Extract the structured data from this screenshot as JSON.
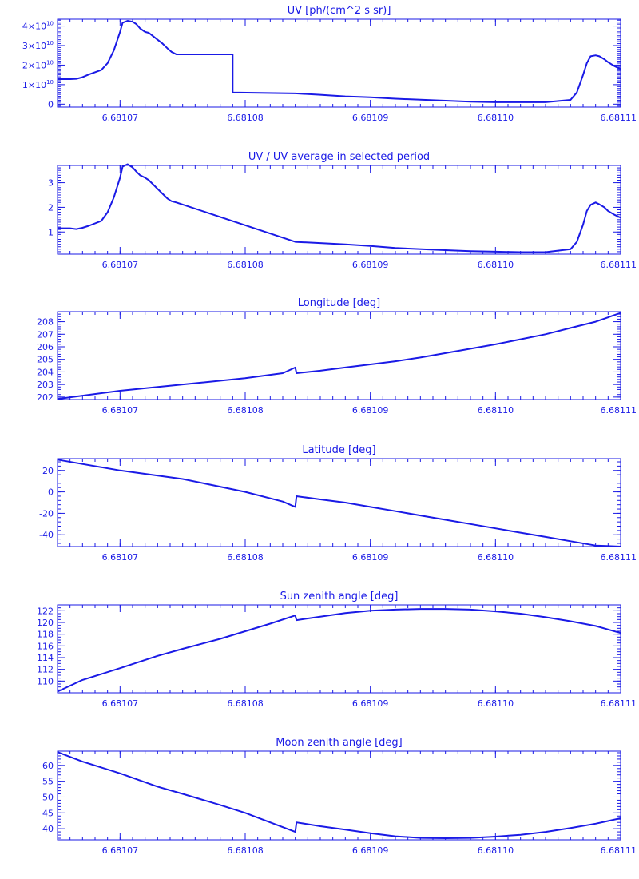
{
  "colors": {
    "line": "#1a1ae6",
    "background": "#ffffff"
  },
  "chart_data": [
    {
      "type": "line",
      "title": "UV [ph/(cm^2 s sr)]",
      "xlim": [
        6.681065,
        6.68111
      ],
      "ylim": [
        -0.15,
        4.35
      ],
      "y_scale_exponent": 10,
      "y_ticks": [
        0,
        1,
        2,
        3,
        4
      ],
      "y_tick_labels": [
        "0",
        "1×10",
        "2×10",
        "3×10",
        "4×10"
      ],
      "y_minor_per_major": 10,
      "x_ticks": [
        6.68107,
        6.68108,
        6.68109,
        6.6811,
        6.68111
      ],
      "x_tick_labels": [
        "6.68107",
        "6.68108",
        "6.68109",
        "6.68110",
        "6.68111"
      ],
      "x": [
        6.681065,
        6.681066,
        6.6810665,
        6.681067,
        6.6810675,
        6.6810685,
        6.681069,
        6.6810695,
        6.68107,
        6.6810702,
        6.6810706,
        6.681071,
        6.6810713,
        6.6810716,
        6.681072,
        6.6810723,
        6.6810726,
        6.681073,
        6.6810734,
        6.6810738,
        6.6810741,
        6.6810745,
        6.681079,
        6.681079,
        6.681084,
        6.681086,
        6.681088,
        6.68109,
        6.681092,
        6.681095,
        6.681098,
        6.6811,
        6.681102,
        6.681104,
        6.681106,
        6.6811065,
        6.681107,
        6.6811073,
        6.6811076,
        6.681108,
        6.6811083,
        6.6811087,
        6.681109,
        6.6811095,
        6.68111
      ],
      "series": [
        {
          "values": [
            1.28,
            1.28,
            1.3,
            1.38,
            1.52,
            1.75,
            2.1,
            2.75,
            3.7,
            4.17,
            4.27,
            4.22,
            4.1,
            3.88,
            3.7,
            3.65,
            3.5,
            3.3,
            3.1,
            2.85,
            2.68,
            2.55,
            2.55,
            0.6,
            0.55,
            0.48,
            0.4,
            0.35,
            0.28,
            0.2,
            0.13,
            0.1,
            0.1,
            0.1,
            0.22,
            0.6,
            1.5,
            2.1,
            2.45,
            2.5,
            2.45,
            2.3,
            2.15,
            1.95,
            1.8
          ]
        }
      ]
    },
    {
      "type": "line",
      "title": "UV / UV average in selected period",
      "xlim": [
        6.681065,
        6.68111
      ],
      "ylim": [
        0.1,
        3.7
      ],
      "y_ticks": [
        1,
        2,
        3
      ],
      "y_tick_labels": [
        "1",
        "2",
        "3"
      ],
      "y_minor_per_major": 10,
      "x_ticks": [
        6.68107,
        6.68108,
        6.68109,
        6.6811,
        6.68111
      ],
      "x_tick_labels": [
        "6.68107",
        "6.68108",
        "6.68109",
        "6.68110",
        "6.68111"
      ],
      "x": [
        6.681065,
        6.681066,
        6.6810665,
        6.681067,
        6.6810675,
        6.6810685,
        6.681069,
        6.6810695,
        6.68107,
        6.6810702,
        6.6810706,
        6.681071,
        6.6810713,
        6.6810716,
        6.681072,
        6.6810723,
        6.6810726,
        6.681073,
        6.6810734,
        6.6810738,
        6.6810741,
        6.6810745,
        6.681084,
        6.681086,
        6.681088,
        6.68109,
        6.681092,
        6.681095,
        6.681098,
        6.6811,
        6.681102,
        6.681104,
        6.681106,
        6.6811065,
        6.681107,
        6.6811073,
        6.6811076,
        6.681108,
        6.6811083,
        6.6811087,
        6.681109,
        6.6811095,
        6.68111
      ],
      "series": [
        {
          "values": [
            1.15,
            1.15,
            1.12,
            1.17,
            1.25,
            1.45,
            1.8,
            2.4,
            3.2,
            3.65,
            3.75,
            3.62,
            3.45,
            3.3,
            3.2,
            3.1,
            2.95,
            2.75,
            2.55,
            2.35,
            2.25,
            2.2,
            0.6,
            0.55,
            0.5,
            0.43,
            0.35,
            0.28,
            0.22,
            0.2,
            0.18,
            0.18,
            0.3,
            0.6,
            1.3,
            1.85,
            2.1,
            2.2,
            2.12,
            2.0,
            1.85,
            1.7,
            1.58
          ]
        }
      ]
    },
    {
      "type": "line",
      "title": "Longitude [deg]",
      "xlim": [
        6.681065,
        6.68111
      ],
      "ylim": [
        201.8,
        208.8
      ],
      "y_ticks": [
        202,
        203,
        204,
        205,
        206,
        207,
        208
      ],
      "y_tick_labels": [
        "202",
        "203",
        "204",
        "205",
        "206",
        "207",
        "208"
      ],
      "y_minor_per_major": 5,
      "x_ticks": [
        6.68107,
        6.68108,
        6.68109,
        6.6811,
        6.68111
      ],
      "x_tick_labels": [
        "6.68107",
        "6.68108",
        "6.68109",
        "6.68110",
        "6.68111"
      ],
      "x": [
        6.681065,
        6.68107,
        6.681075,
        6.68108,
        6.681083,
        6.681084,
        6.6810841,
        6.681086,
        6.681088,
        6.68109,
        6.681092,
        6.681094,
        6.681096,
        6.681098,
        6.6811,
        6.681102,
        6.681104,
        6.681106,
        6.681108,
        6.68111
      ],
      "series": [
        {
          "values": [
            201.85,
            202.5,
            203.0,
            203.5,
            203.9,
            204.35,
            203.9,
            204.1,
            204.35,
            204.6,
            204.85,
            205.15,
            205.5,
            205.85,
            206.2,
            206.6,
            207.0,
            207.5,
            208.0,
            208.7
          ]
        }
      ]
    },
    {
      "type": "line",
      "title": "Latitude [deg]",
      "xlim": [
        6.681065,
        6.68111
      ],
      "ylim": [
        -51,
        31
      ],
      "y_ticks": [
        -40,
        -20,
        0,
        20
      ],
      "y_tick_labels": [
        "-40",
        "-20",
        "0",
        "20"
      ],
      "y_minor_per_major": 5,
      "x_ticks": [
        6.68107,
        6.68108,
        6.68109,
        6.6811,
        6.68111
      ],
      "x_tick_labels": [
        "6.68107",
        "6.68108",
        "6.68109",
        "6.68110",
        "6.68111"
      ],
      "x": [
        6.681065,
        6.68107,
        6.681075,
        6.68108,
        6.681083,
        6.681084,
        6.6810841,
        6.681086,
        6.681088,
        6.68109,
        6.681092,
        6.681094,
        6.681096,
        6.681098,
        6.6811,
        6.681102,
        6.681104,
        6.681106,
        6.681108,
        6.68111
      ],
      "series": [
        {
          "values": [
            30,
            20,
            12,
            0,
            -9,
            -14,
            -4,
            -7,
            -10,
            -14,
            -18,
            -22,
            -26,
            -30,
            -34,
            -38,
            -42,
            -46,
            -50,
            -51
          ]
        }
      ]
    },
    {
      "type": "line",
      "title": "Sun zenith angle [deg]",
      "xlim": [
        6.681065,
        6.68111
      ],
      "ylim": [
        108,
        123
      ],
      "y_ticks": [
        110,
        112,
        114,
        116,
        118,
        120,
        122
      ],
      "y_tick_labels": [
        "110",
        "112",
        "114",
        "116",
        "118",
        "120",
        "122"
      ],
      "y_minor_per_major": 4,
      "x_ticks": [
        6.68107,
        6.68108,
        6.68109,
        6.6811,
        6.68111
      ],
      "x_tick_labels": [
        "6.68107",
        "6.68108",
        "6.68109",
        "6.68110",
        "6.68111"
      ],
      "x": [
        6.681065,
        6.681067,
        6.68107,
        6.681073,
        6.681075,
        6.681078,
        6.68108,
        6.681082,
        6.681084,
        6.6810841,
        6.681086,
        6.681088,
        6.68109,
        6.681092,
        6.681094,
        6.681096,
        6.681098,
        6.6811,
        6.681102,
        6.681104,
        6.681106,
        6.681108,
        6.68111
      ],
      "series": [
        {
          "values": [
            108.2,
            110.2,
            112.2,
            114.3,
            115.5,
            117.2,
            118.5,
            119.8,
            121.2,
            120.4,
            121.0,
            121.6,
            122.0,
            122.2,
            122.3,
            122.3,
            122.2,
            121.9,
            121.5,
            120.9,
            120.2,
            119.4,
            118.2
          ]
        }
      ]
    },
    {
      "type": "line",
      "title": "Moon zenith angle [deg]",
      "xlim": [
        6.681065,
        6.68111
      ],
      "ylim": [
        36.5,
        64.5
      ],
      "y_ticks": [
        40,
        45,
        50,
        55,
        60
      ],
      "y_tick_labels": [
        "40",
        "45",
        "50",
        "55",
        "60"
      ],
      "y_minor_per_major": 5,
      "x_ticks": [
        6.68107,
        6.68108,
        6.68109,
        6.6811,
        6.68111
      ],
      "x_tick_labels": [
        "6.68107",
        "6.68108",
        "6.68109",
        "6.68110",
        "6.68111"
      ],
      "x": [
        6.681065,
        6.681067,
        6.68107,
        6.681073,
        6.681075,
        6.681078,
        6.68108,
        6.681082,
        6.681084,
        6.6810841,
        6.681086,
        6.681088,
        6.68109,
        6.681092,
        6.681094,
        6.681096,
        6.681098,
        6.6811,
        6.681102,
        6.681104,
        6.681106,
        6.681108,
        6.68111
      ],
      "series": [
        {
          "values": [
            64.2,
            61.2,
            57.5,
            53.3,
            51.0,
            47.5,
            45.0,
            42.0,
            39.0,
            42.0,
            40.8,
            39.7,
            38.6,
            37.6,
            37.1,
            37.0,
            37.1,
            37.5,
            38.1,
            39.0,
            40.2,
            41.6,
            43.3
          ]
        }
      ]
    }
  ]
}
